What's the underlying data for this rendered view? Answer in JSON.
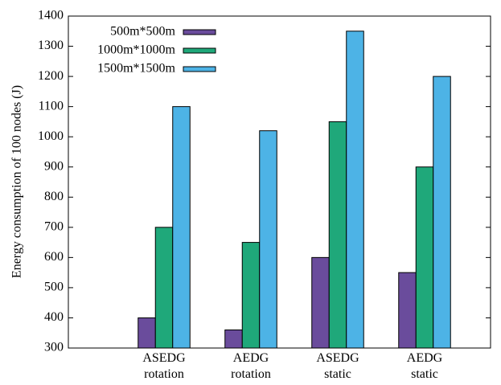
{
  "chart_data": {
    "type": "bar",
    "y_label": "Energy consumption of 100 nodes (J)",
    "categories": [
      "ASEDG\nrotation",
      "AEDG\nrotation",
      "ASEDG\nstatic",
      "AEDG\nstatic"
    ],
    "series": [
      {
        "name": "500m*500m",
        "color": "#6a4c9c",
        "values": [
          400,
          360,
          600,
          550
        ]
      },
      {
        "name": "1000m*1000m",
        "color": "#1fa87a",
        "values": [
          700,
          650,
          1050,
          900
        ]
      },
      {
        "name": "1500m*1500m",
        "color": "#4db3e6",
        "values": [
          1100,
          1020,
          1350,
          1200
        ]
      }
    ],
    "ylim": [
      300,
      1400
    ],
    "yticks": [
      300,
      400,
      500,
      600,
      700,
      800,
      900,
      1000,
      1100,
      1200,
      1300,
      1400
    ],
    "grid": false,
    "legend": "upper left"
  }
}
